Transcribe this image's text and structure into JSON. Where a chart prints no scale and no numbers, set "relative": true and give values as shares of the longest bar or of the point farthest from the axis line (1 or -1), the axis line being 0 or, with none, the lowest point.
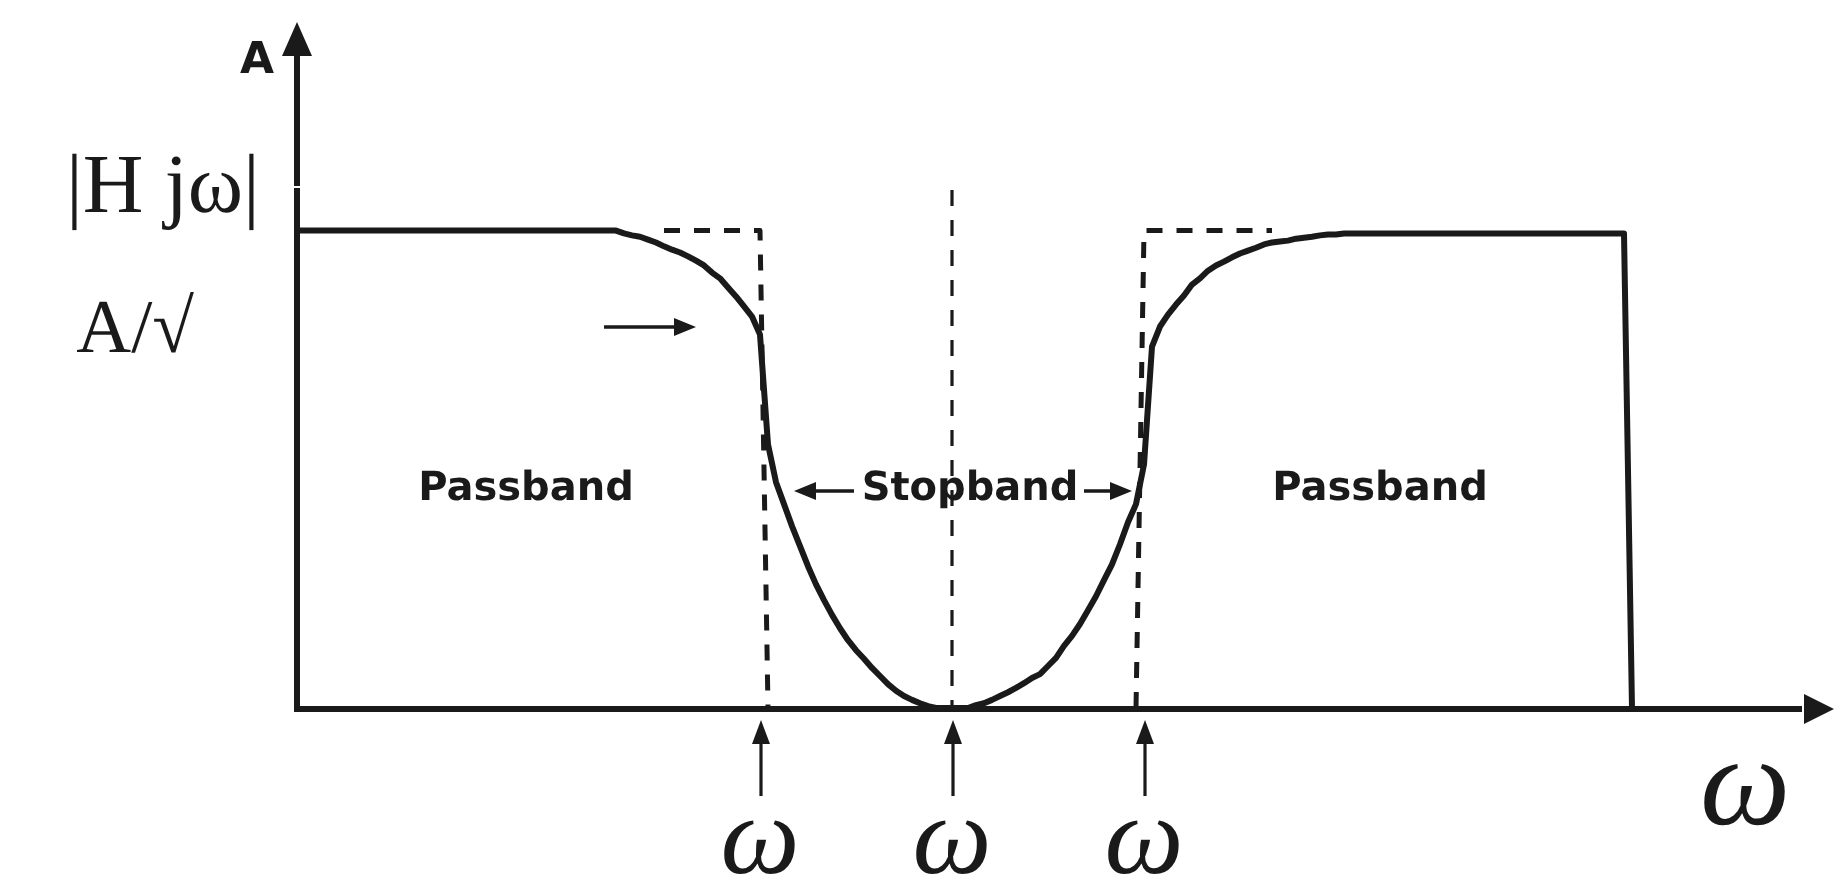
{
  "chart_data": {
    "type": "line",
    "ylabel": "|H jω|",
    "xlabel": "ω",
    "relative": true,
    "categories": [
      null,
      null,
      null,
      null,
      null,
      null,
      null,
      null,
      null,
      null,
      null,
      null,
      null,
      null,
      null,
      null,
      null,
      null,
      null,
      null,
      null,
      null,
      null,
      null,
      null,
      null,
      null,
      null,
      null,
      null,
      null,
      null,
      null,
      null,
      null,
      null,
      null,
      null,
      null,
      null,
      null,
      null,
      null,
      null,
      null,
      null,
      null,
      null,
      null,
      null,
      null,
      null,
      null,
      null,
      null,
      null,
      null,
      null,
      "ω",
      null,
      null,
      null,
      null,
      null,
      null,
      null,
      null,
      null,
      null,
      null,
      null,
      null,
      null,
      null,
      null,
      null,
      null,
      null,
      null,
      null,
      null,
      null,
      "ω",
      null,
      null,
      null,
      null,
      null,
      null,
      null,
      null,
      null,
      null,
      null,
      null,
      null,
      null,
      null,
      null,
      null,
      null,
      null,
      null,
      null,
      null,
      null,
      "ω",
      null,
      null,
      null,
      null,
      null,
      null,
      null,
      null,
      null,
      null,
      null,
      null,
      null,
      null,
      null,
      null,
      null,
      null,
      null,
      null,
      null,
      null,
      null,
      null,
      null,
      null,
      null,
      null,
      null,
      null,
      null,
      null,
      null,
      null,
      null,
      null,
      null,
      null,
      null,
      null,
      null,
      null,
      null,
      null,
      null,
      null,
      null,
      null,
      null,
      null,
      null,
      null,
      null,
      null,
      null,
      null,
      null,
      null,
      null,
      null,
      null,
      null,
      null,
      null,
      null,
      null,
      null,
      null,
      null,
      null,
      null,
      null,
      null,
      null,
      null,
      null,
      null,
      null,
      null,
      null,
      null,
      null
    ],
    "series": [
      {
        "color": "#1a1a1a",
        "line_style": "solid",
        "values": [
          1,
          1,
          1,
          1,
          1,
          1,
          1,
          1,
          1,
          1,
          1,
          1,
          1,
          1,
          1,
          1,
          1,
          1,
          1,
          1,
          1,
          1,
          1,
          1,
          1,
          1,
          1,
          1,
          1,
          1,
          1,
          1,
          1,
          1,
          1,
          1,
          1,
          1,
          1,
          1,
          1,
          0.994,
          0.99,
          0.987,
          0.981,
          0.975,
          0.967,
          0.96,
          0.954,
          0.946,
          0.937,
          0.927,
          0.912,
          0.9,
          0.881,
          0.862,
          0.841,
          0.82,
          0.782,
          0.552,
          0.473,
          0.427,
          0.381,
          0.339,
          0.297,
          0.259,
          0.226,
          0.195,
          0.167,
          0.142,
          0.121,
          0.103,
          0.084,
          0.067,
          0.05,
          0.036,
          0.025,
          0.017,
          0.01,
          0.004,
          0,
          0,
          0,
          0,
          0,
          0.006,
          0.01,
          0.017,
          0.025,
          0.033,
          0.042,
          0.052,
          0.063,
          0.071,
          0.088,
          0.105,
          0.13,
          0.151,
          0.176,
          0.205,
          0.234,
          0.268,
          0.301,
          0.343,
          0.389,
          0.427,
          0.51,
          0.757,
          0.799,
          0.824,
          0.845,
          0.864,
          0.887,
          0.9,
          0.916,
          0.927,
          0.935,
          0.944,
          0.952,
          0.958,
          0.964,
          0.971,
          0.975,
          0.977,
          0.979,
          0.983,
          0.985,
          0.987,
          0.99,
          0.992,
          0.992,
          0.994,
          0.994,
          0.994,
          0.994,
          0.994,
          0.994,
          0.994,
          0.994,
          0.994,
          0.994,
          0.994,
          0.994,
          0.994,
          0.994,
          0.994,
          0.994,
          0.994,
          0.994,
          0.994,
          0.994,
          0.994,
          0.994,
          0.994,
          0.994,
          0.994,
          0.994,
          0.994,
          0.994,
          0.994,
          0.994,
          0.994,
          0.994,
          0.994,
          0.994,
          0.994,
          0.994,
          0,
          null,
          null,
          null,
          null,
          null,
          null,
          null,
          null,
          null,
          null,
          null,
          null,
          null,
          null,
          null,
          null,
          null,
          null,
          null,
          null,
          null
        ]
      },
      {
        "color": "#1a1a1a",
        "line_style": "dashed",
        "values": [
          null,
          null,
          null,
          null,
          null,
          null,
          null,
          null,
          null,
          null,
          null,
          null,
          null,
          null,
          null,
          null,
          null,
          null,
          null,
          null,
          null,
          null,
          null,
          null,
          null,
          null,
          null,
          null,
          null,
          null,
          null,
          null,
          null,
          null,
          null,
          null,
          null,
          null,
          null,
          null,
          null,
          null,
          null,
          null,
          null,
          null,
          1,
          1,
          1,
          1,
          1,
          1,
          1,
          1,
          1,
          1,
          1,
          1,
          1,
          0,
          null,
          null,
          null,
          null,
          null,
          null,
          null,
          null,
          null,
          null,
          null,
          null,
          null,
          null,
          null,
          null,
          null,
          null,
          null,
          null,
          null,
          null,
          null,
          null,
          null,
          null,
          null,
          null,
          null,
          null,
          null,
          null,
          null,
          null,
          null,
          null,
          null,
          null,
          null,
          null,
          null,
          null,
          null,
          null,
          null,
          0,
          1,
          1,
          1,
          1,
          1,
          1,
          1,
          1,
          1,
          1,
          1,
          1,
          1,
          1,
          1,
          1,
          1,
          null,
          null,
          null,
          null,
          null,
          null,
          null,
          null,
          null,
          null,
          null,
          null,
          null,
          null,
          null,
          null,
          null,
          null,
          null,
          null,
          null,
          null,
          null,
          null,
          null,
          null,
          null,
          null,
          null,
          null,
          null,
          null,
          null,
          null,
          null,
          null,
          null,
          null,
          null,
          null,
          null,
          null,
          null,
          null,
          null,
          null,
          null,
          null,
          null,
          null,
          null,
          null,
          null,
          null,
          null,
          null,
          null,
          null,
          null,
          null,
          null,
          null,
          null,
          null,
          null,
          null
        ]
      }
    ],
    "annotations": [
      "A",
      "A/√",
      "Passband",
      "Stopband",
      "Passband"
    ],
    "grid": false,
    "legend": false,
    "marker": "none",
    "tick_labels": "x"
  }
}
